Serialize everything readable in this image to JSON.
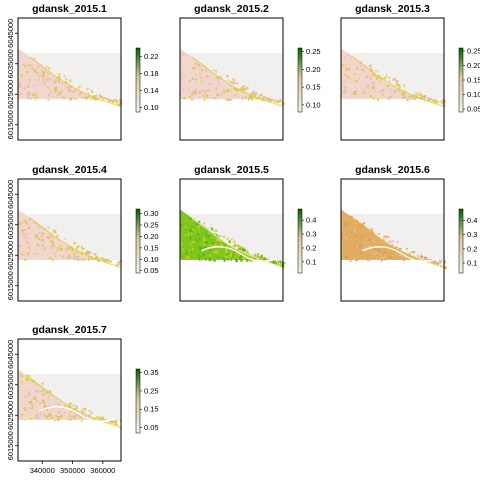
{
  "chart_data": {
    "type": "heatmap",
    "panels": [
      {
        "title": "gdansk_2015.1",
        "legend_ticks": [
          "0.10",
          "0.14",
          "0.18",
          "0.22"
        ],
        "legend_range": [
          0.09,
          0.24
        ],
        "style": "pink"
      },
      {
        "title": "gdansk_2015.2",
        "legend_ticks": [
          "0.10",
          "0.15",
          "0.20",
          "0.25"
        ],
        "legend_range": [
          0.08,
          0.26
        ],
        "style": "pink"
      },
      {
        "title": "gdansk_2015.3",
        "legend_ticks": [
          "0.05",
          "0.10",
          "0.15",
          "0.20",
          "0.25"
        ],
        "legend_range": [
          0.04,
          0.26
        ],
        "style": "pink"
      },
      {
        "title": "gdansk_2015.4",
        "legend_ticks": [
          "0.05",
          "0.10",
          "0.15",
          "0.20",
          "0.25",
          "0.30"
        ],
        "legend_range": [
          0.04,
          0.32
        ],
        "style": "pink"
      },
      {
        "title": "gdansk_2015.5",
        "legend_ticks": [
          "0.1",
          "0.2",
          "0.3",
          "0.4"
        ],
        "legend_range": [
          0.02,
          0.48
        ],
        "style": "green"
      },
      {
        "title": "gdansk_2015.6",
        "legend_ticks": [
          "0.1",
          "0.2",
          "0.3",
          "0.4"
        ],
        "legend_range": [
          0.03,
          0.48
        ],
        "style": "orange"
      },
      {
        "title": "gdansk_2015.7",
        "legend_ticks": [
          "0.05",
          "0.15",
          "0.25",
          "0.35"
        ],
        "legend_range": [
          0.02,
          0.37
        ],
        "style": "salmon"
      }
    ],
    "y_ticks": [
      "6015000",
      "6025000",
      "6035000",
      "6045000"
    ],
    "x_ticks": [
      "340000",
      "350000",
      "360000"
    ],
    "colors": {
      "background": "#f2f0ee",
      "raster_pink": "#f1d6cc",
      "raster_mid": "#e8b89f",
      "raster_orange": "#e1ad63",
      "raster_yellow": "#d8cd2a",
      "raster_green": "#7ec81e",
      "ramp_low": "#f5f2f0",
      "ramp_mid": "#d9c89a",
      "ramp_high": "#006400",
      "frame": "#000000"
    }
  }
}
